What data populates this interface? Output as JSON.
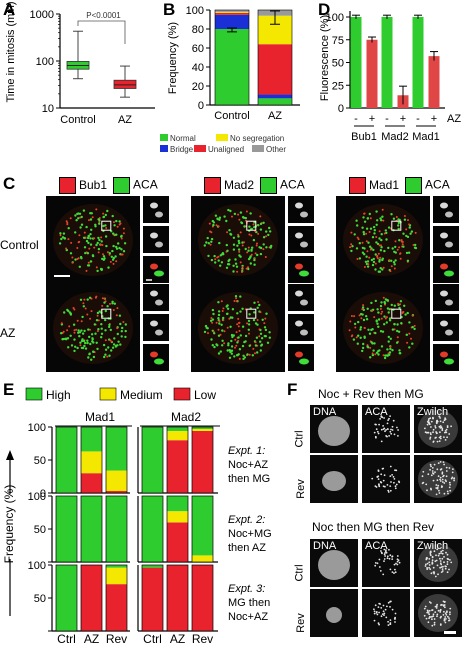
{
  "panels": {
    "A": "A",
    "B": "B",
    "C": "C",
    "D": "D",
    "E": "E",
    "F": "F"
  },
  "colors": {
    "normal": "#2ecc2e",
    "no_segregation": "#f5e800",
    "bridge": "#1b2fd6",
    "unaligned": "#e8232d",
    "other": "#999999",
    "bar_red": "#e04646"
  },
  "panelA": {
    "ylabel": "Time in mitosis (min)",
    "sig": "P<0.0001",
    "chart_data": {
      "type": "box",
      "categories": [
        "Control",
        "AZ"
      ],
      "yscale": "log",
      "ylim": [
        10,
        1000
      ],
      "yticks": [
        "10",
        "100",
        "1000"
      ],
      "boxes": [
        {
          "name": "Control",
          "min": 42,
          "q1": 67,
          "median": 80,
          "q3": 98,
          "max": 430,
          "color": "#2ecc2e"
        },
        {
          "name": "AZ",
          "min": 17,
          "q1": 26,
          "median": 31,
          "q3": 39,
          "max": 78,
          "color": "#e8232d"
        }
      ]
    }
  },
  "panelB": {
    "ylabel": "Frequency (%)",
    "legend": [
      "Normal",
      "No segregation",
      "Bridge",
      "Unaligned",
      "Other"
    ],
    "chart_data": {
      "type": "bar",
      "stacked": true,
      "categories": [
        "Control",
        "AZ"
      ],
      "ylim": [
        0,
        100
      ],
      "yticks": [
        "0",
        "20",
        "40",
        "60",
        "80",
        "100"
      ],
      "series": [
        {
          "name": "Normal",
          "values": [
            80,
            7
          ]
        },
        {
          "name": "Bridge",
          "values": [
            15,
            4
          ]
        },
        {
          "name": "Unaligned",
          "values": [
            2,
            53
          ]
        },
        {
          "name": "No segregation",
          "values": [
            1,
            30
          ]
        },
        {
          "name": "Other",
          "values": [
            2,
            6
          ]
        }
      ],
      "errors": [
        {
          "y": 79,
          "err": 2
        },
        {
          "y": 92,
          "err": 7
        }
      ]
    }
  },
  "panelD": {
    "ylabel": "Fluorescence (%)",
    "signs": [
      "-",
      "+",
      "-",
      "+",
      "-",
      "+"
    ],
    "az": "AZ",
    "proteins": [
      "Bub1",
      "Mad2",
      "Mad1"
    ],
    "chart_data": {
      "type": "bar",
      "categories": [
        "Bub1 -",
        "Bub1 +",
        "Mad2 -",
        "Mad2 +",
        "Mad1 -",
        "Mad1 +"
      ],
      "values": [
        100,
        75,
        100,
        14,
        100,
        57
      ],
      "errors": [
        2,
        3,
        2,
        10,
        2,
        5
      ],
      "ylim": [
        0,
        100
      ],
      "yticks": [
        "0",
        "25",
        "50",
        "75",
        "100"
      ]
    }
  },
  "panelC": {
    "row_labels": [
      "Control",
      "AZ"
    ],
    "columns": [
      {
        "red": "Bub1",
        "green": "ACA"
      },
      {
        "red": "Mad2",
        "green": "ACA"
      },
      {
        "red": "Mad1",
        "green": "ACA"
      }
    ]
  },
  "panelE": {
    "legend": [
      "High",
      "Medium",
      "Low"
    ],
    "groups": [
      "Mad1",
      "Mad2"
    ],
    "ylabel": "Frequency (%)",
    "xcategories": [
      "Ctrl",
      "AZ",
      "Rev",
      "Ctrl",
      "AZ",
      "Rev"
    ],
    "yticks": [
      "0",
      "50",
      "100"
    ],
    "expts": [
      {
        "title": "Expt. 1:",
        "line1": "Noc+AZ",
        "line2": "then MG"
      },
      {
        "title": "Expt. 2:",
        "line1": "Noc+MG",
        "line2": "then AZ"
      },
      {
        "title": "Expt. 3:",
        "line1": "MG then",
        "line2": "Noc+AZ"
      }
    ],
    "chart_data": [
      {
        "type": "bar",
        "stacked": true,
        "name": "Expt. 1",
        "categories": [
          "Mad1 Ctrl",
          "Mad1 AZ",
          "Mad1 Rev",
          "Mad2 Ctrl",
          "Mad2 AZ",
          "Mad2 Rev"
        ],
        "series": [
          {
            "name": "High",
            "values": [
              100,
              37,
              66,
              100,
              6,
              3
            ]
          },
          {
            "name": "Medium",
            "values": [
              0,
              33,
              31,
              0,
              14,
              3
            ]
          },
          {
            "name": "Low",
            "values": [
              0,
              30,
              3,
              0,
              80,
              94
            ]
          }
        ]
      },
      {
        "type": "bar",
        "stacked": true,
        "name": "Expt. 2",
        "categories": [
          "Mad1 Ctrl",
          "Mad1 AZ",
          "Mad1 Rev",
          "Mad2 Ctrl",
          "Mad2 AZ",
          "Mad2 Rev"
        ],
        "series": [
          {
            "name": "High",
            "values": [
              100,
              100,
              100,
              100,
              23,
              90
            ]
          },
          {
            "name": "Medium",
            "values": [
              0,
              0,
              0,
              0,
              17,
              10
            ]
          },
          {
            "name": "Low",
            "values": [
              0,
              0,
              0,
              0,
              60,
              0
            ]
          }
        ]
      },
      {
        "type": "bar",
        "stacked": true,
        "name": "Expt. 3",
        "categories": [
          "Mad1 Ctrl",
          "Mad1 AZ",
          "Mad1 Rev",
          "Mad2 Ctrl",
          "Mad2 AZ",
          "Mad2 Rev"
        ],
        "series": [
          {
            "name": "High",
            "values": [
              100,
              0,
              4,
              4,
              0,
              0
            ]
          },
          {
            "name": "Medium",
            "values": [
              0,
              0,
              25,
              0,
              0,
              0
            ]
          },
          {
            "name": "Low",
            "values": [
              0,
              100,
              71,
              96,
              100,
              100
            ]
          }
        ]
      }
    ]
  },
  "panelF": {
    "section1": "Noc + Rev then MG",
    "section2": "Noc then MG then Rev",
    "channels": [
      "DNA",
      "ACA",
      "Zwilch"
    ],
    "rows": [
      "Ctrl",
      "Rev"
    ]
  }
}
